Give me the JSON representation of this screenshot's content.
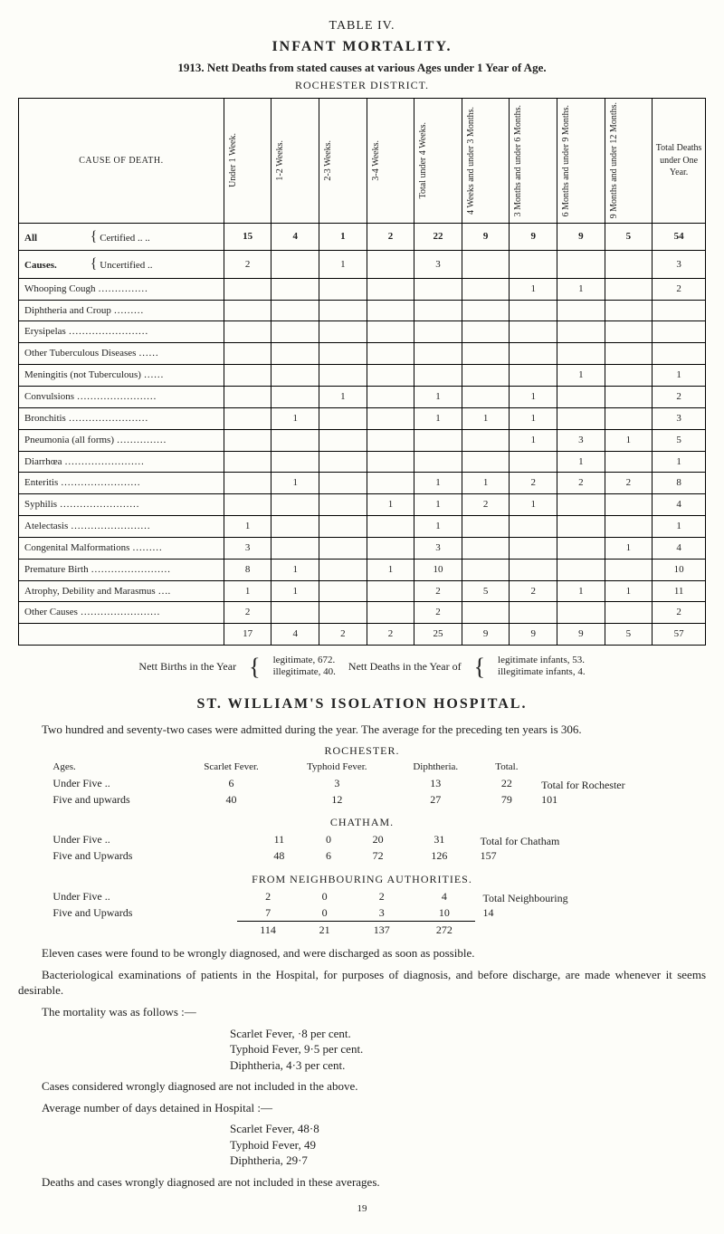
{
  "title_block": {
    "table_label": "TABLE IV.",
    "main": "INFANT MORTALITY.",
    "sub_year": "1913.",
    "sub_rest": "Nett Deaths from stated causes at various Ages under 1 Year of Age.",
    "district": "ROCHESTER DISTRICT."
  },
  "table": {
    "head_cause": "CAUSE OF DEATH.",
    "cols": [
      "Under 1 Week.",
      "1-2 Weeks.",
      "2-3 Weeks.",
      "3-4 Weeks.",
      "Total under 4 Weeks.",
      "4 Weeks and under 3 Months.",
      "3 Months and under 6 Months.",
      "6 Months and under 9 Months.",
      "9 Months and under 12 Months.",
      "Total Deaths under One Year."
    ],
    "group_label": "All Causes.",
    "group_rows": [
      {
        "label": "Certified .. ..",
        "cells": [
          "15",
          "4",
          "1",
          "2",
          "22",
          "9",
          "9",
          "9",
          "5",
          "54"
        ]
      },
      {
        "label": "Uncertified ..",
        "cells": [
          "2",
          "",
          "1",
          "",
          "3",
          "",
          "",
          "",
          "",
          "3"
        ]
      }
    ],
    "rows": [
      {
        "cause": "Whooping Cough ……………",
        "cells": [
          "",
          "",
          "",
          "",
          "",
          "",
          "1",
          "1",
          "",
          "2"
        ]
      },
      {
        "cause": "Diphtheria and Croup ………",
        "cells": [
          "",
          "",
          "",
          "",
          "",
          "",
          "",
          "",
          "",
          ""
        ]
      },
      {
        "cause": "Erysipelas ……………………",
        "cells": [
          "",
          "",
          "",
          "",
          "",
          "",
          "",
          "",
          "",
          ""
        ]
      },
      {
        "cause": "Other Tuberculous Diseases ……",
        "cells": [
          "",
          "",
          "",
          "",
          "",
          "",
          "",
          "",
          "",
          ""
        ]
      },
      {
        "cause": "Meningitis (not Tuberculous) ……",
        "cells": [
          "",
          "",
          "",
          "",
          "",
          "",
          "",
          "1",
          "",
          "1"
        ]
      },
      {
        "cause": "Convulsions ……………………",
        "cells": [
          "",
          "",
          "1",
          "",
          "1",
          "",
          "1",
          "",
          "",
          "2"
        ]
      },
      {
        "cause": "Bronchitis ……………………",
        "cells": [
          "",
          "1",
          "",
          "",
          "1",
          "1",
          "1",
          "",
          "",
          "3"
        ]
      },
      {
        "cause": "Pneumonia (all forms) ……………",
        "cells": [
          "",
          "",
          "",
          "",
          "",
          "",
          "1",
          "3",
          "1",
          "5"
        ]
      },
      {
        "cause": "Diarrhœa ……………………",
        "cells": [
          "",
          "",
          "",
          "",
          "",
          "",
          "",
          "1",
          "",
          "1"
        ]
      },
      {
        "cause": "Enteritis ……………………",
        "cells": [
          "",
          "1",
          "",
          "",
          "1",
          "1",
          "2",
          "2",
          "2",
          "8"
        ]
      },
      {
        "cause": "Syphilis ……………………",
        "cells": [
          "",
          "",
          "",
          "1",
          "1",
          "2",
          "1",
          "",
          "",
          "4"
        ]
      },
      {
        "cause": "Atelectasis ……………………",
        "cells": [
          "1",
          "",
          "",
          "",
          "1",
          "",
          "",
          "",
          "",
          "1"
        ]
      },
      {
        "cause": "Congenital Malformations ………",
        "cells": [
          "3",
          "",
          "",
          "",
          "3",
          "",
          "",
          "",
          "1",
          "4"
        ]
      },
      {
        "cause": "Premature Birth ……………………",
        "cells": [
          "8",
          "1",
          "",
          "1",
          "10",
          "",
          "",
          "",
          "",
          "10"
        ]
      },
      {
        "cause": "Atrophy, Debility and Marasmus ….",
        "cells": [
          "1",
          "1",
          "",
          "",
          "2",
          "5",
          "2",
          "1",
          "1",
          "11"
        ]
      },
      {
        "cause": "Other Causes ……………………",
        "cells": [
          "2",
          "",
          "",
          "",
          "2",
          "",
          "",
          "",
          "",
          "2"
        ]
      }
    ],
    "totals": [
      "17",
      "4",
      "2",
      "2",
      "25",
      "9",
      "9",
      "9",
      "5",
      "57"
    ]
  },
  "nett": {
    "left": "Nett Births in the Year",
    "left_top": "legitimate, 672.",
    "left_bot": "illegitimate, 40.",
    "mid": "Nett Deaths in the Year of",
    "right_top": "legitimate infants, 53.",
    "right_bot": "illegitimate infants, 4."
  },
  "isolation": {
    "head": "ST. WILLIAM'S ISOLATION HOSPITAL.",
    "intro": "Two hundred and seventy-two cases were admitted during the year. The average for the preceding ten years is 306.",
    "rochester_head": "ROCHESTER.",
    "col_heads": {
      "ages": "Ages.",
      "sf": "Scarlet Fever.",
      "tf": "Typhoid Fever.",
      "dip": "Diphtheria.",
      "total": "Total."
    },
    "roch": {
      "rows": [
        {
          "age": "Under Five ..",
          "sf": "6",
          "tf": "3",
          "dip": "13",
          "total": "22"
        },
        {
          "age": "Five and upwards",
          "sf": "40",
          "tf": "12",
          "dip": "27",
          "total": "79"
        }
      ],
      "sum_label": "Total for Rochester",
      "sum": "101"
    },
    "chatham_head": "CHATHAM.",
    "chat": {
      "rows": [
        {
          "age": "Under Five ..",
          "sf": "11",
          "tf": "0",
          "dip": "20",
          "total": "31"
        },
        {
          "age": "Five and Upwards",
          "sf": "48",
          "tf": "6",
          "dip": "72",
          "total": "126"
        }
      ],
      "sum_label": "Total for Chatham",
      "sum": "157"
    },
    "neigh_head": "FROM NEIGHBOURING AUTHORITIES.",
    "neigh": {
      "rows": [
        {
          "age": "Under Five ..",
          "sf": "2",
          "tf": "0",
          "dip": "2",
          "total": "4"
        },
        {
          "age": "Five and Upwards",
          "sf": "7",
          "tf": "0",
          "dip": "3",
          "total": "10"
        }
      ],
      "sum_label": "Total Neighbouring",
      "sum": "14"
    },
    "grand": {
      "sf": "114",
      "tf": "21",
      "dip": "137",
      "total": "272"
    },
    "p1": "Eleven cases were found to be wrongly diagnosed, and were discharged as soon as possible.",
    "p2": "Bacteriological examinations of patients in the Hospital, for purposes of diagnosis, and before discharge, are made whenever it seems desirable.",
    "p3_intro": "The mortality was as follows :—",
    "mort_lines": [
      "Scarlet Fever, ·8 per cent.",
      "Typhoid Fever, 9·5 per cent.",
      "Diphtheria, 4·3 per cent."
    ],
    "p4": "Cases considered wrongly diagnosed are not included in the above.",
    "p5_intro": "Average number of days detained in Hospital :—",
    "stay_lines": [
      "Scarlet Fever, 48·8",
      "Typhoid Fever, 49",
      "Diphtheria, 29·7"
    ],
    "p6": "Deaths and cases wrongly diagnosed are not included in these averages."
  },
  "page_num": "19"
}
